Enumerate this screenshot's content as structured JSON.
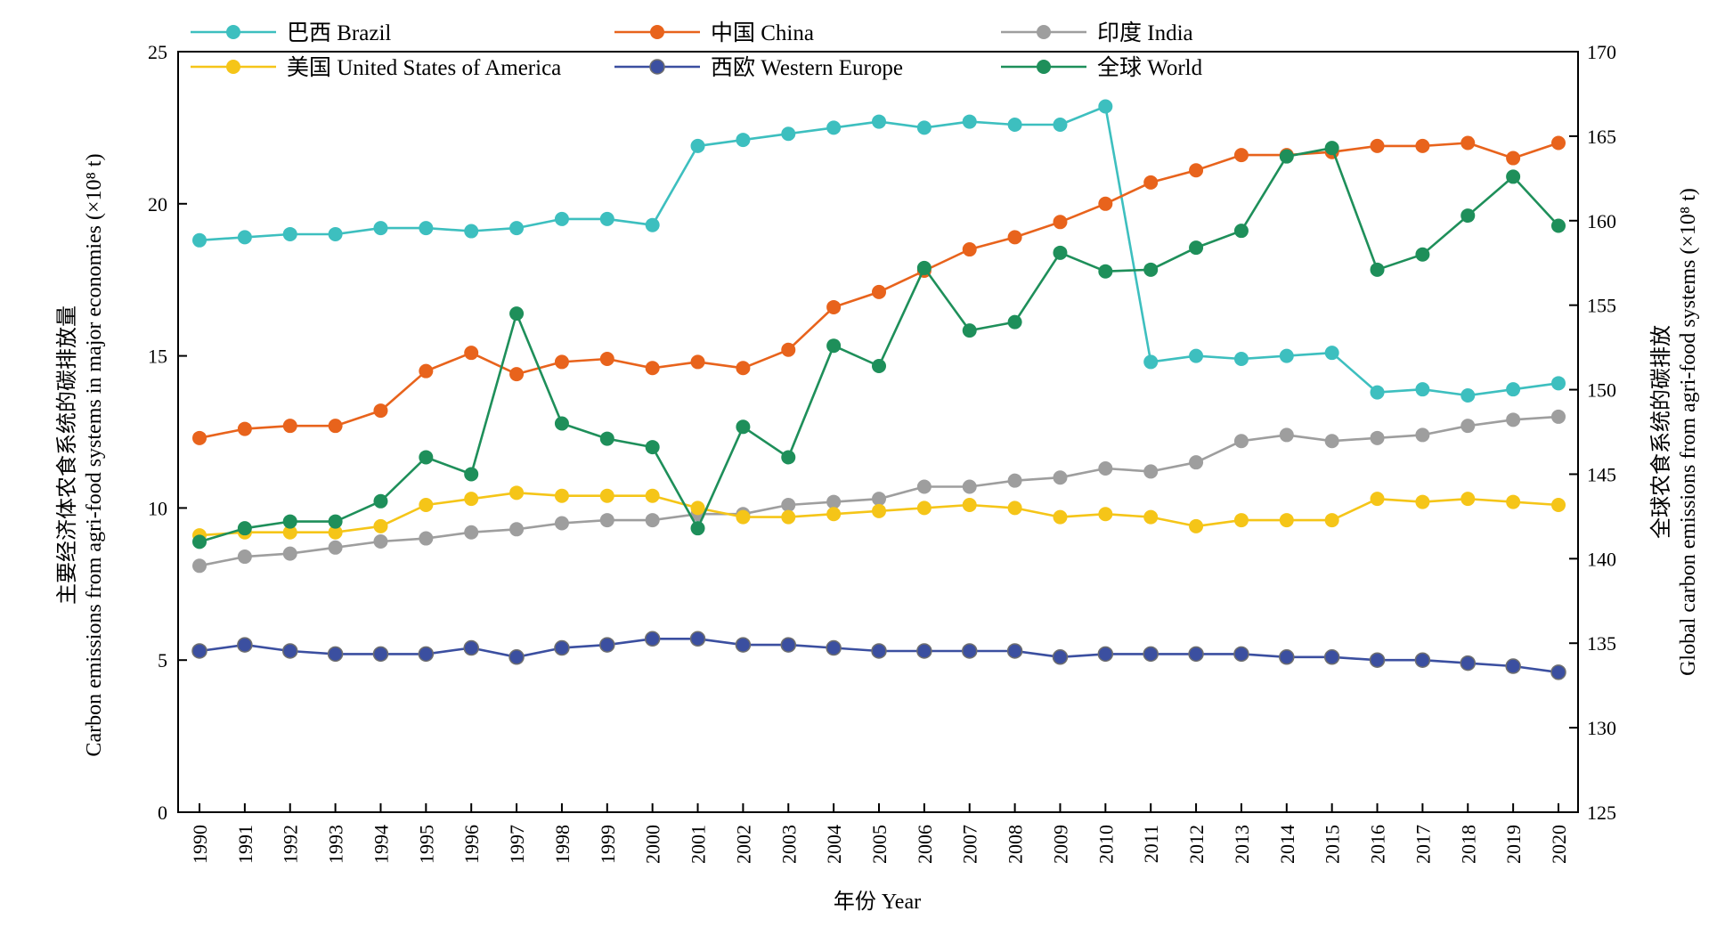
{
  "chart_data": {
    "type": "line",
    "x": [
      1990,
      1991,
      1992,
      1993,
      1994,
      1995,
      1996,
      1997,
      1998,
      1999,
      2000,
      2001,
      2002,
      2003,
      2004,
      2005,
      2006,
      2007,
      2008,
      2009,
      2010,
      2011,
      2012,
      2013,
      2014,
      2015,
      2016,
      2017,
      2018,
      2019,
      2020
    ],
    "xlabel": "年份 Year",
    "ylabel_left_line1": "主要经济体农食系统的碳排放量",
    "ylabel_left_line2": "Carbon emissions from agri-food systems in major economies (×10⁸ t)",
    "ylabel_right_line1": "全球农食系统的碳排放",
    "ylabel_right_line2": "Global carbon emissions from agri-food systems (×10⁸ t)",
    "ylim_left": [
      0,
      25
    ],
    "yticks_left": [
      0,
      5,
      10,
      15,
      20,
      25
    ],
    "ylim_right": [
      125,
      170
    ],
    "yticks_right": [
      125,
      130,
      135,
      140,
      145,
      150,
      155,
      160,
      165,
      170
    ],
    "grid": false,
    "legend_placement": "top",
    "series": [
      {
        "name": "巴西 Brazil",
        "axis": "left",
        "color": "#3dbfbf",
        "values": [
          18.8,
          18.9,
          19.0,
          19.0,
          19.2,
          19.2,
          19.1,
          19.2,
          19.5,
          19.5,
          19.3,
          21.9,
          22.1,
          22.3,
          22.5,
          22.7,
          22.5,
          22.7,
          22.6,
          22.6,
          23.2,
          14.8,
          15.0,
          14.9,
          15.0,
          15.1,
          13.8,
          13.9,
          13.7,
          13.9,
          14.1
        ]
      },
      {
        "name": "中国 China",
        "axis": "left",
        "color": "#e8631c",
        "values": [
          12.3,
          12.6,
          12.7,
          12.7,
          13.2,
          14.5,
          15.1,
          14.4,
          14.8,
          14.9,
          14.6,
          14.8,
          14.6,
          15.2,
          16.6,
          17.1,
          17.8,
          18.5,
          18.9,
          19.4,
          20.0,
          20.7,
          21.1,
          21.6,
          21.6,
          21.7,
          21.9,
          21.9,
          22.0,
          21.5,
          22.0
        ]
      },
      {
        "name": "印度 India",
        "axis": "left",
        "color": "#9e9e9e",
        "values": [
          8.1,
          8.4,
          8.5,
          8.7,
          8.9,
          9.0,
          9.2,
          9.3,
          9.5,
          9.6,
          9.6,
          9.8,
          9.8,
          10.1,
          10.2,
          10.3,
          10.7,
          10.7,
          10.9,
          11.0,
          11.3,
          11.2,
          11.5,
          12.2,
          12.4,
          12.2,
          12.3,
          12.4,
          12.7,
          12.9,
          13.0
        ]
      },
      {
        "name": "美国 United States of America",
        "axis": "left",
        "color": "#f5c518",
        "values": [
          9.1,
          9.2,
          9.2,
          9.2,
          9.4,
          10.1,
          10.3,
          10.5,
          10.4,
          10.4,
          10.4,
          10.0,
          9.7,
          9.7,
          9.8,
          9.9,
          10.0,
          10.1,
          10.0,
          9.7,
          9.8,
          9.7,
          9.4,
          9.6,
          9.6,
          9.6,
          10.3,
          10.2,
          10.3,
          10.2,
          10.1
        ]
      },
      {
        "name": "西欧 Western Europe",
        "axis": "left",
        "color": "#3b4fa0",
        "edge": "#6f6f6f",
        "values": [
          5.3,
          5.5,
          5.3,
          5.2,
          5.2,
          5.2,
          5.4,
          5.1,
          5.4,
          5.5,
          5.7,
          5.7,
          5.5,
          5.5,
          5.4,
          5.3,
          5.3,
          5.3,
          5.3,
          5.1,
          5.2,
          5.2,
          5.2,
          5.2,
          5.1,
          5.1,
          5.0,
          5.0,
          4.9,
          4.8,
          4.6
        ]
      },
      {
        "name": "全球 World",
        "axis": "right",
        "color": "#1e8f5a",
        "values": [
          141.0,
          141.8,
          142.2,
          142.2,
          143.4,
          146.0,
          145.0,
          154.5,
          148.0,
          147.1,
          146.6,
          141.8,
          147.8,
          146.0,
          152.6,
          151.4,
          157.2,
          153.5,
          154.0,
          158.1,
          157.0,
          157.1,
          158.4,
          159.4,
          163.8,
          164.3,
          157.1,
          158.0,
          160.3,
          162.6,
          159.7
        ]
      }
    ]
  }
}
